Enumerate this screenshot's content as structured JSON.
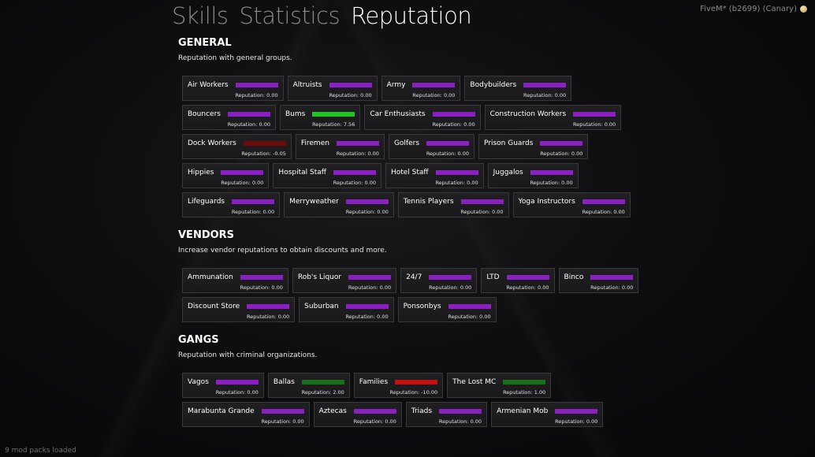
{
  "tabs": [
    {
      "label": "Skills",
      "active": false
    },
    {
      "label": "Statistics",
      "active": false
    },
    {
      "label": "Reputation",
      "active": true
    }
  ],
  "brand": {
    "label": "FiveM* (b2699) (Canary)",
    "icon": "fivem-logo-icon"
  },
  "colors": {
    "purple": "#8a1fc4",
    "green_bright": "#22c322",
    "green_dark": "#1b6e1b",
    "red_dark": "#6e0a0a",
    "red": "#c41212",
    "card_bg": "#1c1c1e",
    "card_border": "#38383a"
  },
  "sections": [
    {
      "id": "general",
      "title": "GENERAL",
      "description": "Reputation with general groups.",
      "items": [
        {
          "name": "Air Workers",
          "rep": "Reputation: 0.00",
          "color": "#8a1fc4"
        },
        {
          "name": "Altruists",
          "rep": "Reputation: 0.00",
          "color": "#8a1fc4"
        },
        {
          "name": "Army",
          "rep": "Reputation: 0.00",
          "color": "#8a1fc4"
        },
        {
          "name": "Bodybuilders",
          "rep": "Reputation: 0.00",
          "color": "#8a1fc4"
        },
        {
          "name": "Bouncers",
          "rep": "Reputation: 0.00",
          "color": "#8a1fc4"
        },
        {
          "name": "Bums",
          "rep": "Reputation: 7.56",
          "color": "#22c322"
        },
        {
          "name": "Car Enthusiasts",
          "rep": "Reputation: 0.00",
          "color": "#8a1fc4"
        },
        {
          "name": "Construction Workers",
          "rep": "Reputation: 0.00",
          "color": "#8a1fc4"
        },
        {
          "name": "Dock Workers",
          "rep": "Reputation: -0.05",
          "color": "#6e0a0a"
        },
        {
          "name": "Firemen",
          "rep": "Reputation: 0.00",
          "color": "#8a1fc4"
        },
        {
          "name": "Golfers",
          "rep": "Reputation: 0.00",
          "color": "#8a1fc4"
        },
        {
          "name": "Prison Guards",
          "rep": "Reputation: 0.00",
          "color": "#8a1fc4"
        },
        {
          "name": "Hippies",
          "rep": "Reputation: 0.00",
          "color": "#8a1fc4"
        },
        {
          "name": "Hospital Staff",
          "rep": "Reputation: 0.00",
          "color": "#8a1fc4"
        },
        {
          "name": "Hotel Staff",
          "rep": "Reputation: 0.00",
          "color": "#8a1fc4"
        },
        {
          "name": "Juggalos",
          "rep": "Reputation: 0.00",
          "color": "#8a1fc4"
        },
        {
          "name": "Lifeguards",
          "rep": "Reputation: 0.00",
          "color": "#8a1fc4"
        },
        {
          "name": "Merryweather",
          "rep": "Reputation: 0.00",
          "color": "#8a1fc4"
        },
        {
          "name": "Tennis Players",
          "rep": "Reputation: 0.00",
          "color": "#8a1fc4"
        },
        {
          "name": "Yoga Instructors",
          "rep": "Reputation: 0.00",
          "color": "#8a1fc4"
        }
      ]
    },
    {
      "id": "vendors",
      "title": "VENDORS",
      "description": "Increase vendor reputations to obtain discounts and more.",
      "items": [
        {
          "name": "Ammunation",
          "rep": "Reputation: 0.00",
          "color": "#8a1fc4"
        },
        {
          "name": "Rob's Liquor",
          "rep": "Reputation: 0.00",
          "color": "#8a1fc4"
        },
        {
          "name": "24/7",
          "rep": "Reputation: 0.00",
          "color": "#8a1fc4"
        },
        {
          "name": "LTD",
          "rep": "Reputation: 0.00",
          "color": "#8a1fc4"
        },
        {
          "name": "Binco",
          "rep": "Reputation: 0.00",
          "color": "#8a1fc4"
        },
        {
          "name": "Discount Store",
          "rep": "Reputation: 0.00",
          "color": "#8a1fc4"
        },
        {
          "name": "Suburban",
          "rep": "Reputation: 0.00",
          "color": "#8a1fc4"
        },
        {
          "name": "Ponsonbys",
          "rep": "Reputation: 0.00",
          "color": "#8a1fc4"
        }
      ]
    },
    {
      "id": "gangs",
      "title": "GANGS",
      "description": "Reputation with criminal organizations.",
      "items": [
        {
          "name": "Vagos",
          "rep": "Reputation: 0.00",
          "color": "#8a1fc4"
        },
        {
          "name": "Ballas",
          "rep": "Reputation: 2.00",
          "color": "#1b6e1b"
        },
        {
          "name": "Families",
          "rep": "Reputation: -10.00",
          "color": "#c41212"
        },
        {
          "name": "The Lost MC",
          "rep": "Reputation: 1.00",
          "color": "#1b6e1b"
        },
        {
          "name": "Marabunta Grande",
          "rep": "Reputation: 0.00",
          "color": "#8a1fc4"
        },
        {
          "name": "Aztecas",
          "rep": "Reputation: 0.00",
          "color": "#8a1fc4"
        },
        {
          "name": "Triads",
          "rep": "Reputation: 0.00",
          "color": "#8a1fc4"
        },
        {
          "name": "Armenian Mob",
          "rep": "Reputation: 0.00",
          "color": "#8a1fc4"
        }
      ]
    }
  ],
  "footer": {
    "status": "9 mod packs loaded"
  }
}
